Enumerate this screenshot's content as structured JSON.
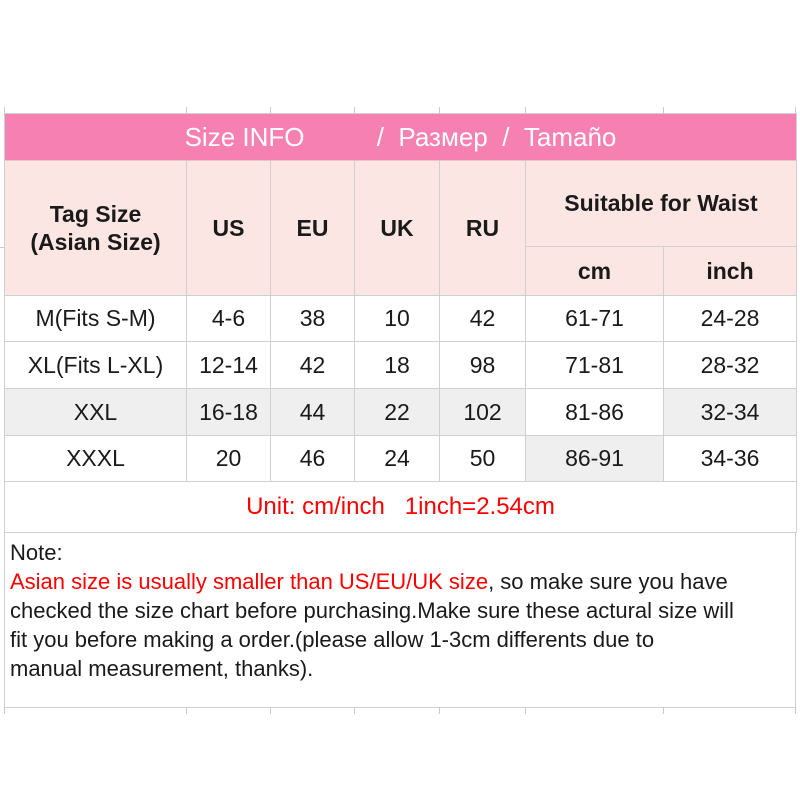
{
  "colors": {
    "band_pink": "#f780b2",
    "header_pink": "#fce6e3",
    "shaded_gray": "#efefef",
    "gridline": "#d0d0d0",
    "accent_red": "#fe0000",
    "title_text": "#ffffff"
  },
  "size_table": {
    "title": "Size INFO          /  Размер  /  Tamaño",
    "headers": {
      "tag_line1": "Tag Size",
      "tag_line2": "(Asian Size)",
      "us": "US",
      "eu": "EU",
      "uk": "UK",
      "ru": "RU",
      "waist": "Suitable for Waist",
      "cm": "cm",
      "inch": "inch"
    },
    "rows": [
      {
        "tag": "M(Fits S-M)",
        "us": "4-6",
        "eu": "38",
        "uk": "10",
        "ru": "42",
        "cm": "61-71",
        "inch": "24-28"
      },
      {
        "tag": "XL(Fits L-XL)",
        "us": "12-14",
        "eu": "42",
        "uk": "18",
        "ru": "98",
        "cm": "71-81",
        "inch": "28-32"
      },
      {
        "tag": "XXL",
        "us": "16-18",
        "eu": "44",
        "uk": "22",
        "ru": "102",
        "cm": "81-86",
        "inch": "32-34"
      },
      {
        "tag": "XXXL",
        "us": "20",
        "eu": "46",
        "uk": "24",
        "ru": "50",
        "cm": "86-91",
        "inch": "34-36"
      }
    ],
    "unit_note": "Unit: cm/inch   1inch=2.54cm"
  },
  "note": {
    "label": "Note:",
    "line1_red": "Asian size is usually smaller than US/EU/UK size",
    "line1_black": ", so make sure you have",
    "line2": "checked the size chart before purchasing.Make sure these actural size will",
    "line3": "fit you before making a order.(please allow 1-3cm differents due to",
    "line4": "manual measurement, thanks)."
  }
}
